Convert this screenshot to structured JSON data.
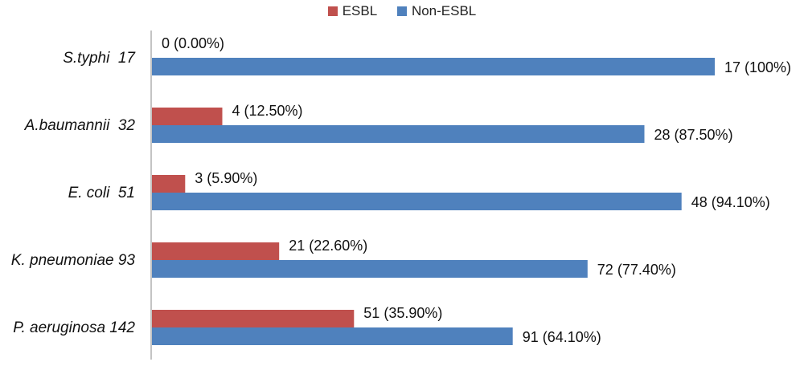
{
  "chart_data": {
    "type": "bar",
    "orientation": "horizontal",
    "categories": [
      "S.typhi  17",
      "A.baumannii  32",
      "E. coli  51",
      "K. pneumoniae 93",
      "P. aeruginosa 142"
    ],
    "series": [
      {
        "name": "ESBL",
        "color": "#c0504d",
        "values": [
          0,
          4,
          3,
          21,
          51
        ],
        "labels": [
          "0 (0.00%)",
          "4 (12.50%)",
          "3 (5.90%)",
          "21 (22.60%)",
          "51 (35.90%)"
        ]
      },
      {
        "name": "Non-ESBL",
        "color": "#4f81bd",
        "values": [
          17,
          28,
          48,
          72,
          91
        ],
        "labels": [
          "17 (100%)",
          "28 (87.50%)",
          "48 (94.10%)",
          "72 (77.40%)",
          "91 (64.10%)"
        ]
      }
    ],
    "value_scale": "percent of category total",
    "percent_values": {
      "ESBL": [
        0.0,
        12.5,
        5.9,
        22.6,
        35.9
      ],
      "Non-ESBL": [
        100,
        87.5,
        94.1,
        77.4,
        64.1
      ]
    },
    "xlim": [
      0,
      100
    ],
    "legend": "top-center",
    "grid": false
  }
}
